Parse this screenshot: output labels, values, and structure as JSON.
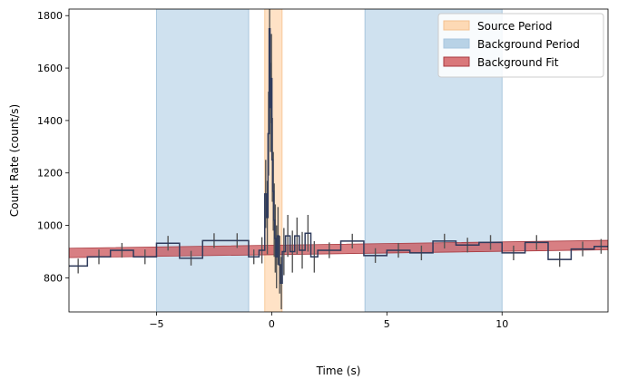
{
  "chart_data": {
    "type": "line",
    "xlabel": "Time (s)",
    "ylabel": "Count Rate (count/s)",
    "xlim": [
      -8.8,
      14.6
    ],
    "ylim": [
      670,
      1825
    ],
    "x_ticks": [
      -5,
      0,
      5,
      10
    ],
    "y_ticks": [
      800,
      1000,
      1200,
      1400,
      1600,
      1800
    ],
    "grid": false,
    "legend_position": "top-right",
    "legend": [
      {
        "label": "Source Period",
        "color": "#fdd9b5"
      },
      {
        "label": "Background Period",
        "color": "#b8d2e6"
      },
      {
        "label": "Background Fit",
        "color": "#d9777a"
      }
    ],
    "colors": {
      "source": "#ffe2c6",
      "background": "#cfe1ef",
      "background_edge": "#a8c6de",
      "fit": "#c8494f",
      "lightcurve": "#2f3b5c",
      "errorbar": "#555555"
    },
    "source_period": [
      -0.3,
      0.45
    ],
    "background_periods": [
      [
        -5.0,
        -1.0
      ],
      [
        4.05,
        10.0
      ]
    ],
    "background_fit": {
      "start": [
        -8.8,
        895
      ],
      "end": [
        14.6,
        925
      ],
      "band_halfwidth": 18
    },
    "lightcurve_bins": [
      {
        "x0": -8.8,
        "x1": -8.0,
        "y": 845,
        "err": 28
      },
      {
        "x0": -8.0,
        "x1": -7.0,
        "y": 880,
        "err": 28
      },
      {
        "x0": -7.0,
        "x1": -6.0,
        "y": 905,
        "err": 28
      },
      {
        "x0": -6.0,
        "x1": -5.0,
        "y": 880,
        "err": 28
      },
      {
        "x0": -5.0,
        "x1": -4.0,
        "y": 932,
        "err": 28
      },
      {
        "x0": -4.0,
        "x1": -3.0,
        "y": 875,
        "err": 28
      },
      {
        "x0": -3.0,
        "x1": -2.0,
        "y": 942,
        "err": 28
      },
      {
        "x0": -2.0,
        "x1": -1.0,
        "y": 942,
        "err": 28
      },
      {
        "x0": -1.0,
        "x1": -0.55,
        "y": 880,
        "err": 28
      },
      {
        "x0": -0.55,
        "x1": -0.3,
        "y": 905,
        "err": 50
      },
      {
        "x0": -0.3,
        "x1": -0.22,
        "y": 1120,
        "err": 130
      },
      {
        "x0": -0.22,
        "x1": -0.16,
        "y": 1030,
        "err": 140
      },
      {
        "x0": -0.16,
        "x1": -0.11,
        "y": 1350,
        "err": 160
      },
      {
        "x0": -0.11,
        "x1": -0.07,
        "y": 1750,
        "err": 170
      },
      {
        "x0": -0.07,
        "x1": -0.03,
        "y": 1450,
        "err": 170
      },
      {
        "x0": -0.03,
        "x1": 0.01,
        "y": 1560,
        "err": 170
      },
      {
        "x0": 0.01,
        "x1": 0.05,
        "y": 1250,
        "err": 160
      },
      {
        "x0": 0.05,
        "x1": 0.09,
        "y": 1130,
        "err": 150
      },
      {
        "x0": 0.09,
        "x1": 0.13,
        "y": 1020,
        "err": 140
      },
      {
        "x0": 0.13,
        "x1": 0.18,
        "y": 950,
        "err": 130
      },
      {
        "x0": 0.18,
        "x1": 0.24,
        "y": 880,
        "err": 120
      },
      {
        "x0": 0.24,
        "x1": 0.31,
        "y": 960,
        "err": 110
      },
      {
        "x0": 0.31,
        "x1": 0.38,
        "y": 850,
        "err": 110
      },
      {
        "x0": 0.38,
        "x1": 0.46,
        "y": 780,
        "err": 100
      },
      {
        "x0": 0.46,
        "x1": 0.6,
        "y": 900,
        "err": 90
      },
      {
        "x0": 0.6,
        "x1": 0.8,
        "y": 960,
        "err": 80
      },
      {
        "x0": 0.8,
        "x1": 1.0,
        "y": 900,
        "err": 80
      },
      {
        "x0": 1.0,
        "x1": 1.2,
        "y": 960,
        "err": 70
      },
      {
        "x0": 1.2,
        "x1": 1.45,
        "y": 905,
        "err": 70
      },
      {
        "x0": 1.45,
        "x1": 1.7,
        "y": 970,
        "err": 70
      },
      {
        "x0": 1.7,
        "x1": 2.0,
        "y": 880,
        "err": 60
      },
      {
        "x0": 2.0,
        "x1": 3.0,
        "y": 905,
        "err": 30
      },
      {
        "x0": 3.0,
        "x1": 4.0,
        "y": 940,
        "err": 28
      },
      {
        "x0": 4.0,
        "x1": 5.0,
        "y": 885,
        "err": 28
      },
      {
        "x0": 5.0,
        "x1": 6.0,
        "y": 905,
        "err": 28
      },
      {
        "x0": 6.0,
        "x1": 7.0,
        "y": 895,
        "err": 28
      },
      {
        "x0": 7.0,
        "x1": 8.0,
        "y": 940,
        "err": 28
      },
      {
        "x0": 8.0,
        "x1": 9.0,
        "y": 925,
        "err": 28
      },
      {
        "x0": 9.0,
        "x1": 10.0,
        "y": 935,
        "err": 28
      },
      {
        "x0": 10.0,
        "x1": 11.0,
        "y": 895,
        "err": 28
      },
      {
        "x0": 11.0,
        "x1": 12.0,
        "y": 935,
        "err": 28
      },
      {
        "x0": 12.0,
        "x1": 13.0,
        "y": 870,
        "err": 28
      },
      {
        "x0": 13.0,
        "x1": 14.0,
        "y": 910,
        "err": 28
      },
      {
        "x0": 14.0,
        "x1": 14.6,
        "y": 920,
        "err": 28
      }
    ]
  }
}
